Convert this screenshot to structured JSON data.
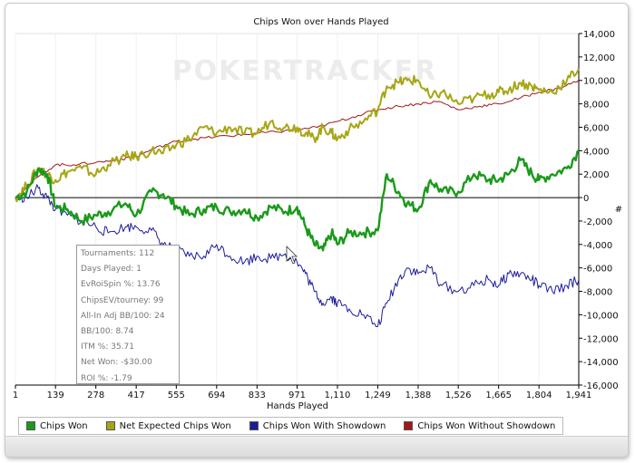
{
  "chart_data": {
    "type": "line",
    "title": "Chips Won over Hands Played",
    "xlabel": "Hands Played",
    "ylabel": "#",
    "watermark": "POKERTRACKER",
    "xlim": [
      1,
      1941
    ],
    "ylim": [
      -16000,
      14000
    ],
    "x_ticks": [
      1,
      139,
      278,
      417,
      555,
      694,
      833,
      971,
      1110,
      1249,
      1388,
      1526,
      1665,
      1804,
      1941
    ],
    "x_tick_labels": [
      "1",
      "139",
      "278",
      "417",
      "555",
      "694",
      "833",
      "971",
      "1,110",
      "1,249",
      "1,388",
      "1,526",
      "1,665",
      "1,804",
      "1,941"
    ],
    "y_ticks": [
      -16000,
      -14000,
      -12000,
      -10000,
      -8000,
      -6000,
      -4000,
      -2000,
      0,
      2000,
      4000,
      6000,
      8000,
      10000,
      12000,
      14000
    ],
    "y_tick_labels": [
      "-16,000",
      "-14,000",
      "-12,000",
      "-10,000",
      "-8,000",
      "-6,000",
      "-4,000",
      "-2,000",
      "0",
      "2,000",
      "4,000",
      "6,000",
      "8,000",
      "10,000",
      "12,000",
      "14,000"
    ],
    "series": [
      {
        "name": "Chips Won",
        "color": "#1a9a1a",
        "x": [
          1,
          40,
          80,
          110,
          139,
          180,
          230,
          278,
          320,
          380,
          417,
          470,
          510,
          555,
          600,
          650,
          694,
          740,
          790,
          833,
          880,
          930,
          971,
          1000,
          1030,
          1060,
          1090,
          1110,
          1150,
          1200,
          1249,
          1280,
          1320,
          1350,
          1388,
          1430,
          1470,
          1526,
          1580,
          1630,
          1665,
          1700,
          1740,
          1780,
          1804,
          1850,
          1900,
          1941
        ],
        "values": [
          0,
          500,
          2500,
          2000,
          -800,
          -1000,
          -2000,
          -1500,
          -1200,
          -500,
          -1500,
          500,
          300,
          -700,
          -1500,
          -1000,
          -800,
          -1200,
          -1000,
          -1700,
          -800,
          -1200,
          -800,
          -2500,
          -4000,
          -4500,
          -3000,
          -4000,
          -3000,
          -3000,
          -2800,
          2000,
          500,
          -500,
          -1000,
          1500,
          500,
          500,
          2000,
          1500,
          1500,
          2000,
          3200,
          2000,
          1500,
          2000,
          2500,
          4000
        ]
      },
      {
        "name": "Net Expected Chips Won",
        "color": "#a6a614",
        "x": [
          1,
          40,
          80,
          110,
          139,
          180,
          230,
          278,
          320,
          380,
          417,
          470,
          510,
          555,
          600,
          650,
          694,
          740,
          790,
          833,
          880,
          930,
          971,
          1000,
          1030,
          1060,
          1090,
          1110,
          1150,
          1200,
          1249,
          1280,
          1320,
          1350,
          1388,
          1430,
          1470,
          1526,
          1580,
          1630,
          1665,
          1700,
          1740,
          1780,
          1804,
          1850,
          1900,
          1941
        ],
        "values": [
          0,
          1000,
          2500,
          2000,
          1500,
          2200,
          2500,
          2000,
          2800,
          3500,
          3500,
          4000,
          3800,
          4500,
          5000,
          6000,
          5500,
          6000,
          5500,
          5500,
          6500,
          6000,
          6000,
          5500,
          5000,
          6000,
          5500,
          5000,
          5800,
          6500,
          7500,
          9500,
          9800,
          10000,
          10000,
          8500,
          9000,
          8000,
          8500,
          8800,
          9000,
          9200,
          9800,
          9500,
          9200,
          9000,
          10000,
          11000
        ]
      },
      {
        "name": "Chips Won With Showdown",
        "color": "#1c1c9c",
        "x": [
          1,
          40,
          80,
          110,
          139,
          180,
          230,
          278,
          320,
          380,
          417,
          470,
          510,
          555,
          600,
          650,
          694,
          740,
          790,
          833,
          880,
          930,
          971,
          1000,
          1030,
          1060,
          1090,
          1110,
          1150,
          1200,
          1249,
          1280,
          1320,
          1350,
          1388,
          1430,
          1470,
          1526,
          1580,
          1630,
          1665,
          1700,
          1740,
          1780,
          1804,
          1850,
          1900,
          1941
        ],
        "values": [
          0,
          0,
          800,
          0,
          -1000,
          -1500,
          -2000,
          -2500,
          -3000,
          -2500,
          -2500,
          -2800,
          -4000,
          -4500,
          -5000,
          -5000,
          -4000,
          -5000,
          -5500,
          -5000,
          -5200,
          -4800,
          -5500,
          -6500,
          -8000,
          -9000,
          -8500,
          -9000,
          -9500,
          -10000,
          -11000,
          -9000,
          -7000,
          -6000,
          -6500,
          -6000,
          -7500,
          -8000,
          -7500,
          -7000,
          -7500,
          -6500,
          -6500,
          -7000,
          -7500,
          -8000,
          -7500,
          -7000
        ]
      },
      {
        "name": "Chips Won Without Showdown",
        "color": "#a01818",
        "x": [
          1,
          80,
          139,
          200,
          278,
          350,
          417,
          480,
          555,
          620,
          694,
          760,
          833,
          900,
          971,
          1040,
          1110,
          1180,
          1249,
          1320,
          1388,
          1460,
          1526,
          1600,
          1665,
          1740,
          1804,
          1870,
          1941
        ],
        "values": [
          0,
          1800,
          2800,
          2800,
          3000,
          3200,
          3500,
          4200,
          4800,
          5000,
          5200,
          5300,
          5500,
          5600,
          5800,
          6000,
          6500,
          7000,
          7500,
          7800,
          8000,
          8200,
          7500,
          7800,
          8000,
          8500,
          9000,
          9300,
          10000
        ]
      }
    ],
    "tooltip": [
      "Tournaments: 112",
      "Days Played: 1",
      "EvRoiSpin %: 13.76",
      "ChipsEV/tourney: 99",
      "All-In Adj BB/100: 24",
      "BB/100: 8.74",
      "ITM %: 35.71",
      "Net Won: -$30.00",
      "ROI %: -1.79"
    ]
  },
  "legend": {
    "items": [
      {
        "label": "Chips Won",
        "color": "#1a9a1a"
      },
      {
        "label": "Net Expected Chips Won",
        "color": "#a6a614"
      },
      {
        "label": "Chips Won With Showdown",
        "color": "#1c1c9c"
      },
      {
        "label": "Chips Won Without Showdown",
        "color": "#a01818"
      }
    ]
  }
}
